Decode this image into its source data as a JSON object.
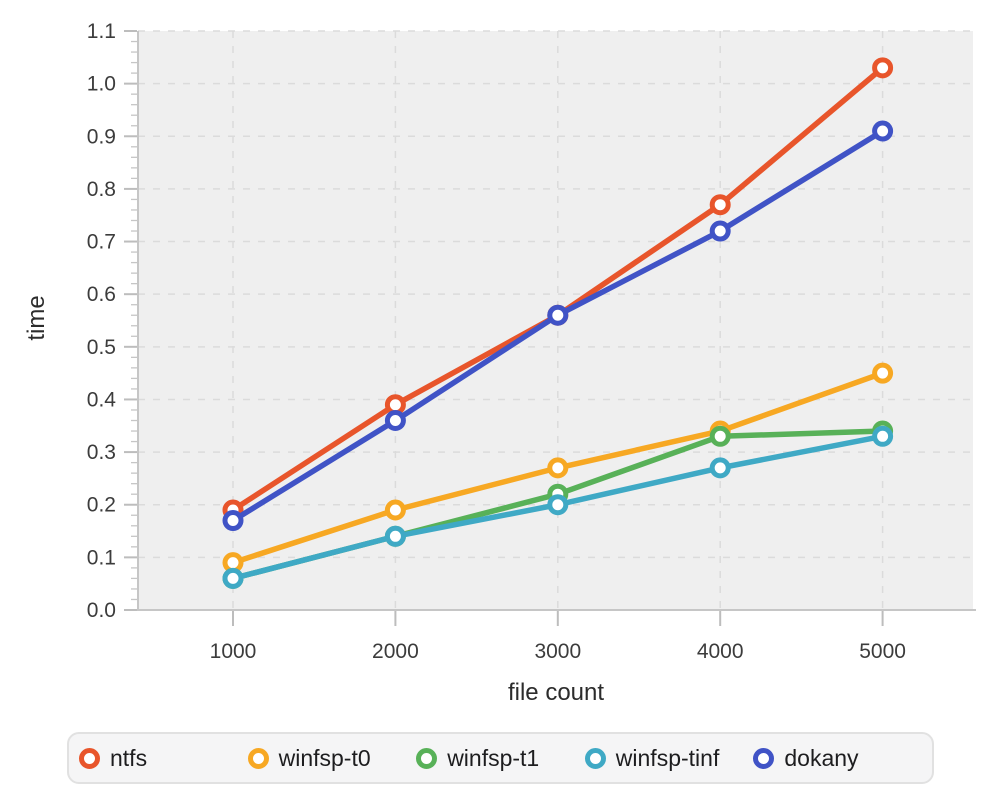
{
  "chart_data": {
    "type": "line",
    "title": "",
    "xlabel": "file count",
    "ylabel": "time",
    "x": [
      1000,
      2000,
      3000,
      4000,
      5000
    ],
    "x_ticks": [
      "1000",
      "2000",
      "3000",
      "4000",
      "5000"
    ],
    "y_ticks": [
      "0.0",
      "0.1",
      "0.2",
      "0.3",
      "0.4",
      "0.5",
      "0.6",
      "0.7",
      "0.8",
      "0.9",
      "1.0",
      "1.1"
    ],
    "ylim": [
      0,
      1.1
    ],
    "xlim": [
      430,
      5560
    ],
    "grid": "dashed",
    "marker": "open-circle",
    "legend_position": "bottom",
    "series": [
      {
        "name": "ntfs",
        "color": "#e8552b",
        "values": [
          0.19,
          0.39,
          0.56,
          0.77,
          1.03
        ]
      },
      {
        "name": "winfsp-t0",
        "color": "#f7a823",
        "values": [
          0.09,
          0.19,
          0.27,
          0.34,
          0.45
        ]
      },
      {
        "name": "winfsp-t1",
        "color": "#58b158",
        "values": [
          0.06,
          0.14,
          0.22,
          0.33,
          0.34
        ]
      },
      {
        "name": "winfsp-tinf",
        "color": "#3fa9c5",
        "values": [
          0.06,
          0.14,
          0.2,
          0.27,
          0.33
        ]
      },
      {
        "name": "dokany",
        "color": "#4053c6",
        "values": [
          0.17,
          0.36,
          0.56,
          0.72,
          0.91
        ]
      }
    ]
  }
}
